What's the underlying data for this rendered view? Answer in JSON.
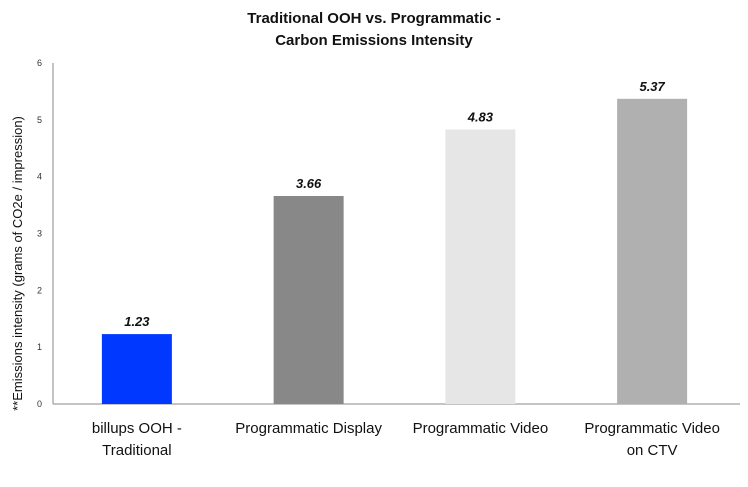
{
  "chart_data": {
    "type": "bar",
    "title": [
      "Traditional OOH vs. Programmatic -",
      "Carbon Emissions Intensity"
    ],
    "xlabel": "",
    "ylabel": "**Emissions intensity (grams of CO2e / impression)",
    "ylim": [
      0,
      6
    ],
    "yticks": [
      "0",
      "1",
      "2",
      "3",
      "4",
      "5",
      "6"
    ],
    "grid": false,
    "categories": [
      [
        "billups OOH -",
        "Traditional"
      ],
      [
        "Programmatic Display"
      ],
      [
        "Programmatic Video"
      ],
      [
        "Programmatic Video",
        "on CTV"
      ]
    ],
    "values": [
      1.23,
      3.66,
      4.83,
      5.37
    ],
    "data_labels": [
      "1.23",
      "3.66",
      "4.83",
      "5.37"
    ],
    "colors": [
      "#0038FF",
      "#888888",
      "#E6E6E6",
      "#B0B0B0"
    ]
  }
}
